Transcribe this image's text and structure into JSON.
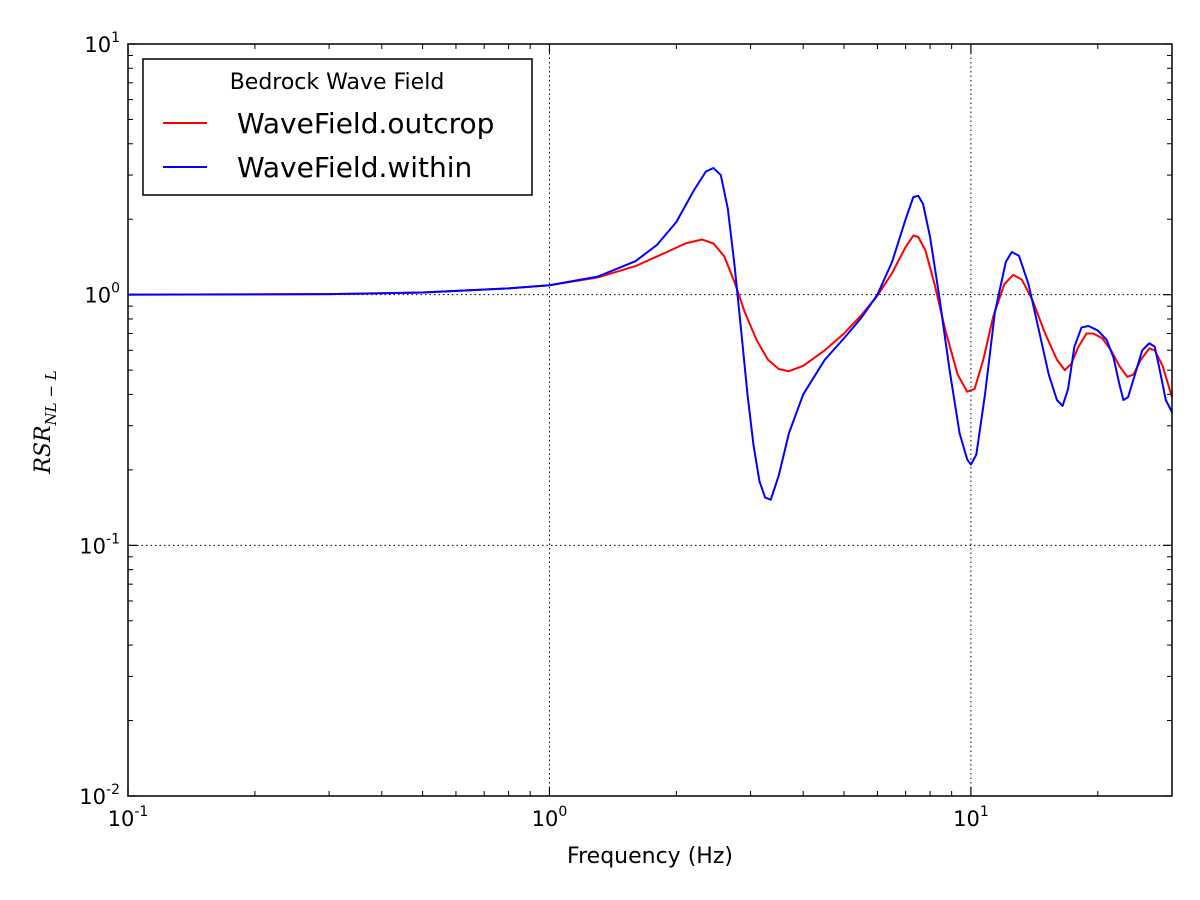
{
  "chart_data": {
    "type": "line",
    "xlabel": "Frequency (Hz)",
    "ylabel": {
      "base": "RSR",
      "subscript": "NL − L"
    },
    "x_scale": "log",
    "y_scale": "log",
    "xlim": [
      0.1,
      30
    ],
    "ylim": [
      0.01,
      10
    ],
    "x_ticks": [
      {
        "value": 0.1,
        "base": "10",
        "exp": "-1"
      },
      {
        "value": 1,
        "base": "10",
        "exp": "0"
      },
      {
        "value": 10,
        "base": "10",
        "exp": "1"
      }
    ],
    "y_ticks": [
      {
        "value": 0.01,
        "base": "10",
        "exp": "-2"
      },
      {
        "value": 0.1,
        "base": "10",
        "exp": "-1"
      },
      {
        "value": 1,
        "base": "10",
        "exp": "0"
      },
      {
        "value": 10,
        "base": "10",
        "exp": "1"
      }
    ],
    "grid": true,
    "legend": {
      "title": "Bedrock Wave Field",
      "placement": "top-left"
    },
    "series": [
      {
        "name": "WaveField.outcrop",
        "color": "#ff0000",
        "points": [
          [
            0.1,
            1.0
          ],
          [
            0.3,
            1.005
          ],
          [
            0.5,
            1.02
          ],
          [
            0.8,
            1.06
          ],
          [
            1.0,
            1.09
          ],
          [
            1.3,
            1.17
          ],
          [
            1.6,
            1.3
          ],
          [
            1.9,
            1.48
          ],
          [
            2.1,
            1.6
          ],
          [
            2.3,
            1.66
          ],
          [
            2.45,
            1.6
          ],
          [
            2.6,
            1.42
          ],
          [
            2.75,
            1.12
          ],
          [
            2.9,
            0.86
          ],
          [
            3.1,
            0.66
          ],
          [
            3.3,
            0.55
          ],
          [
            3.5,
            0.505
          ],
          [
            3.7,
            0.495
          ],
          [
            4.0,
            0.52
          ],
          [
            4.5,
            0.6
          ],
          [
            5.0,
            0.7
          ],
          [
            5.5,
            0.83
          ],
          [
            6.0,
            0.99
          ],
          [
            6.5,
            1.22
          ],
          [
            7.0,
            1.55
          ],
          [
            7.3,
            1.72
          ],
          [
            7.5,
            1.7
          ],
          [
            7.8,
            1.5
          ],
          [
            8.2,
            1.1
          ],
          [
            8.7,
            0.72
          ],
          [
            9.3,
            0.48
          ],
          [
            9.8,
            0.41
          ],
          [
            10.2,
            0.42
          ],
          [
            10.7,
            0.55
          ],
          [
            11.3,
            0.82
          ],
          [
            12.0,
            1.1
          ],
          [
            12.6,
            1.2
          ],
          [
            13.2,
            1.15
          ],
          [
            14.0,
            0.95
          ],
          [
            15.0,
            0.7
          ],
          [
            16.0,
            0.55
          ],
          [
            16.7,
            0.5
          ],
          [
            17.3,
            0.53
          ],
          [
            18.0,
            0.62
          ],
          [
            18.8,
            0.7
          ],
          [
            19.5,
            0.7
          ],
          [
            20.5,
            0.67
          ],
          [
            21.5,
            0.6
          ],
          [
            22.5,
            0.52
          ],
          [
            23.5,
            0.47
          ],
          [
            24.3,
            0.48
          ],
          [
            25.3,
            0.55
          ],
          [
            26.5,
            0.61
          ],
          [
            27.3,
            0.6
          ],
          [
            28.5,
            0.52
          ],
          [
            30.0,
            0.39
          ]
        ]
      },
      {
        "name": "WaveField.within",
        "color": "#0000ff",
        "points": [
          [
            0.1,
            1.0
          ],
          [
            0.3,
            1.005
          ],
          [
            0.5,
            1.02
          ],
          [
            0.8,
            1.06
          ],
          [
            1.0,
            1.09
          ],
          [
            1.3,
            1.18
          ],
          [
            1.6,
            1.36
          ],
          [
            1.8,
            1.58
          ],
          [
            2.0,
            1.95
          ],
          [
            2.2,
            2.6
          ],
          [
            2.35,
            3.1
          ],
          [
            2.45,
            3.2
          ],
          [
            2.55,
            3.0
          ],
          [
            2.65,
            2.2
          ],
          [
            2.75,
            1.3
          ],
          [
            2.85,
            0.72
          ],
          [
            2.95,
            0.4
          ],
          [
            3.05,
            0.25
          ],
          [
            3.15,
            0.18
          ],
          [
            3.25,
            0.155
          ],
          [
            3.35,
            0.152
          ],
          [
            3.5,
            0.19
          ],
          [
            3.7,
            0.28
          ],
          [
            4.0,
            0.4
          ],
          [
            4.5,
            0.55
          ],
          [
            5.0,
            0.67
          ],
          [
            5.5,
            0.81
          ],
          [
            6.0,
            1.0
          ],
          [
            6.5,
            1.35
          ],
          [
            7.0,
            2.0
          ],
          [
            7.3,
            2.45
          ],
          [
            7.5,
            2.48
          ],
          [
            7.7,
            2.3
          ],
          [
            8.0,
            1.7
          ],
          [
            8.4,
            1.0
          ],
          [
            8.9,
            0.5
          ],
          [
            9.4,
            0.28
          ],
          [
            9.8,
            0.22
          ],
          [
            10.0,
            0.21
          ],
          [
            10.3,
            0.23
          ],
          [
            10.8,
            0.4
          ],
          [
            11.4,
            0.85
          ],
          [
            12.1,
            1.35
          ],
          [
            12.5,
            1.48
          ],
          [
            13.0,
            1.43
          ],
          [
            13.7,
            1.1
          ],
          [
            14.5,
            0.72
          ],
          [
            15.3,
            0.48
          ],
          [
            16.0,
            0.38
          ],
          [
            16.5,
            0.36
          ],
          [
            17.0,
            0.42
          ],
          [
            17.6,
            0.62
          ],
          [
            18.3,
            0.74
          ],
          [
            19.0,
            0.75
          ],
          [
            20.0,
            0.72
          ],
          [
            21.0,
            0.66
          ],
          [
            21.8,
            0.56
          ],
          [
            22.5,
            0.44
          ],
          [
            23.0,
            0.38
          ],
          [
            23.6,
            0.39
          ],
          [
            24.5,
            0.48
          ],
          [
            25.5,
            0.6
          ],
          [
            26.5,
            0.64
          ],
          [
            27.3,
            0.62
          ],
          [
            28.2,
            0.48
          ],
          [
            29.0,
            0.38
          ],
          [
            30.0,
            0.34
          ]
        ]
      }
    ]
  }
}
